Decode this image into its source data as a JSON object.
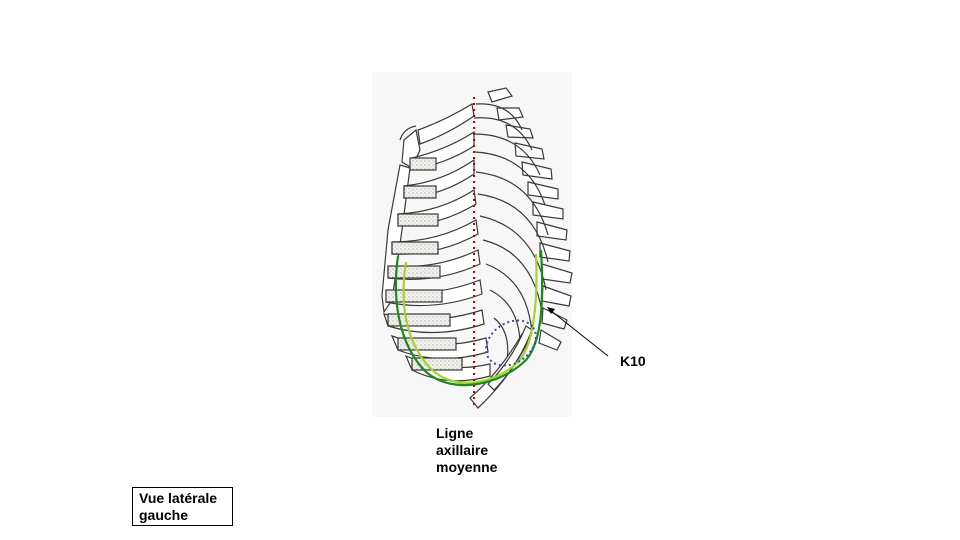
{
  "labels": {
    "axillary_line": [
      "Ligne",
      "axillaire",
      "moyenne"
    ],
    "k10": "K10",
    "view": [
      "Vue latérale",
      "gauche"
    ]
  },
  "colors": {
    "axillary_line": "#c00000",
    "outline_dark_green": "#1a8a1a",
    "outline_light_green": "#a6d22e",
    "k10_ellipse": "#3a4aa0",
    "bone_stroke": "#3a3a3a",
    "cartilage_fill": "#e8e6e2"
  }
}
